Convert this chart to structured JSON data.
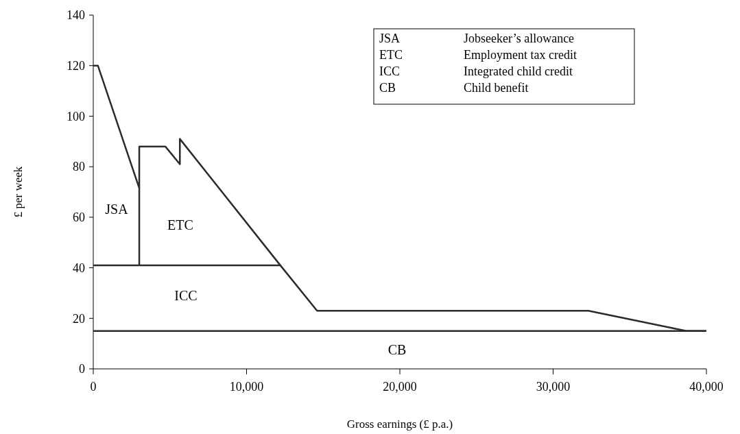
{
  "chart_data": {
    "type": "line",
    "xlabel": "Gross earnings (£ p.a.)",
    "ylabel": "£ per week",
    "xlim": [
      0,
      40000
    ],
    "xticks": [
      {
        "value": 0,
        "label": "0"
      },
      {
        "value": 10000,
        "label": "10,000"
      },
      {
        "value": 20000,
        "label": "20,000"
      },
      {
        "value": 30000,
        "label": "30,000"
      },
      {
        "value": 40000,
        "label": "40,000"
      }
    ],
    "ylim": [
      0,
      140
    ],
    "yticks": [
      0,
      20,
      40,
      60,
      80,
      100,
      120,
      140
    ],
    "grid": false,
    "marker": "none",
    "line_style": "solid",
    "series": [
      {
        "color": "#2b2b2b",
        "x": [
          0,
          300,
          3000,
          3000,
          4700,
          5650,
          5650,
          12200,
          14600,
          32300,
          38700,
          40000
        ],
        "values": [
          120,
          120,
          71.5,
          88,
          88,
          81,
          91,
          41,
          23,
          23,
          15,
          15
        ]
      },
      {
        "color": "#2b2b2b",
        "x": [
          0,
          12200
        ],
        "values": [
          41,
          41
        ]
      },
      {
        "color": "#2b2b2b",
        "x": [
          3000,
          3000
        ],
        "values": [
          41,
          71.5
        ]
      },
      {
        "color": "#2b2b2b",
        "x": [
          0,
          40000
        ],
        "values": [
          15,
          15
        ]
      }
    ],
    "annotations": [
      "JSA",
      "ETC",
      "ICC",
      "CB",
      "JSA",
      "Jobseeker’s allowance",
      "ETC",
      "Employment tax credit",
      "ICC",
      "Integrated child credit",
      "CB",
      "Child benefit"
    ]
  }
}
